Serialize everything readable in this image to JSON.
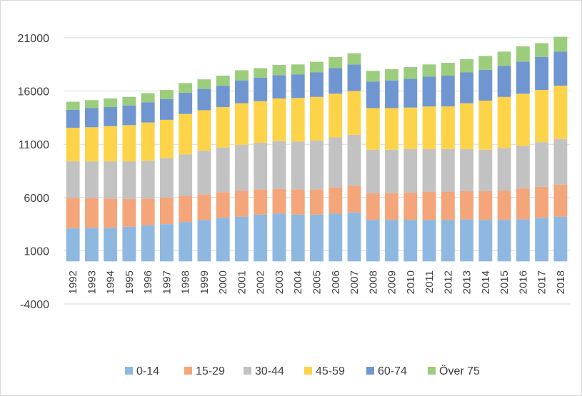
{
  "chart_data": {
    "type": "bar",
    "stacked": true,
    "title": "",
    "xlabel": "",
    "ylabel": "",
    "ylim": [
      -4000,
      21000
    ],
    "yticks": [
      -4000,
      1000,
      6000,
      11000,
      16000,
      21000
    ],
    "yticks_labels": [
      "-4000",
      "1000",
      "6000",
      "11000",
      "16000",
      "21000"
    ],
    "grid": true,
    "legend_position": "bottom",
    "categories": [
      "1992",
      "1993",
      "1994",
      "1995",
      "1996",
      "1997",
      "1998",
      "1999",
      "2000",
      "2001",
      "2002",
      "2003",
      "2004",
      "2005",
      "2006",
      "2007",
      "2008",
      "2009",
      "2010",
      "2011",
      "2012",
      "2013",
      "2014",
      "2015",
      "2016",
      "2017",
      "2018"
    ],
    "series": [
      {
        "name": "0-14",
        "color": "#8fb8e1",
        "values": [
          3100,
          3150,
          3150,
          3250,
          3400,
          3500,
          3700,
          3900,
          4100,
          4200,
          4400,
          4500,
          4400,
          4400,
          4500,
          4600,
          3900,
          3900,
          3900,
          3900,
          3900,
          3950,
          3900,
          3900,
          3950,
          4100,
          4200
        ]
      },
      {
        "name": "15-29",
        "color": "#f4a57a",
        "values": [
          2850,
          2800,
          2750,
          2600,
          2500,
          2500,
          2450,
          2400,
          2400,
          2450,
          2350,
          2300,
          2350,
          2350,
          2450,
          2500,
          2500,
          2500,
          2550,
          2650,
          2650,
          2650,
          2700,
          2750,
          2900,
          2900,
          3000
        ]
      },
      {
        "name": "30-44",
        "color": "#c2c2c2",
        "values": [
          3450,
          3450,
          3500,
          3550,
          3550,
          3700,
          3900,
          4100,
          4200,
          4300,
          4400,
          4500,
          4500,
          4600,
          4700,
          4800,
          4100,
          4100,
          4100,
          4000,
          4000,
          3950,
          3900,
          4000,
          4000,
          4200,
          4300
        ]
      },
      {
        "name": "45-59",
        "color": "#fdd449",
        "values": [
          3150,
          3200,
          3300,
          3400,
          3600,
          3600,
          3800,
          3800,
          3800,
          3900,
          3900,
          4000,
          4100,
          4100,
          4100,
          4100,
          3900,
          3900,
          3900,
          4000,
          4000,
          4300,
          4600,
          4800,
          4900,
          4900,
          5000
        ]
      },
      {
        "name": "60-74",
        "color": "#7096d1",
        "values": [
          1700,
          1800,
          1800,
          1850,
          1900,
          1950,
          2000,
          2000,
          2000,
          2150,
          2200,
          2200,
          2200,
          2300,
          2400,
          2500,
          2500,
          2600,
          2700,
          2800,
          2900,
          2900,
          2900,
          2900,
          3000,
          3100,
          3200
        ]
      },
      {
        "name": "Över 75",
        "color": "#9ccd7c",
        "values": [
          750,
          750,
          800,
          800,
          850,
          850,
          900,
          900,
          950,
          950,
          900,
          950,
          950,
          1000,
          1050,
          1050,
          1000,
          1050,
          1100,
          1150,
          1200,
          1250,
          1300,
          1350,
          1450,
          1300,
          1400
        ]
      }
    ]
  }
}
